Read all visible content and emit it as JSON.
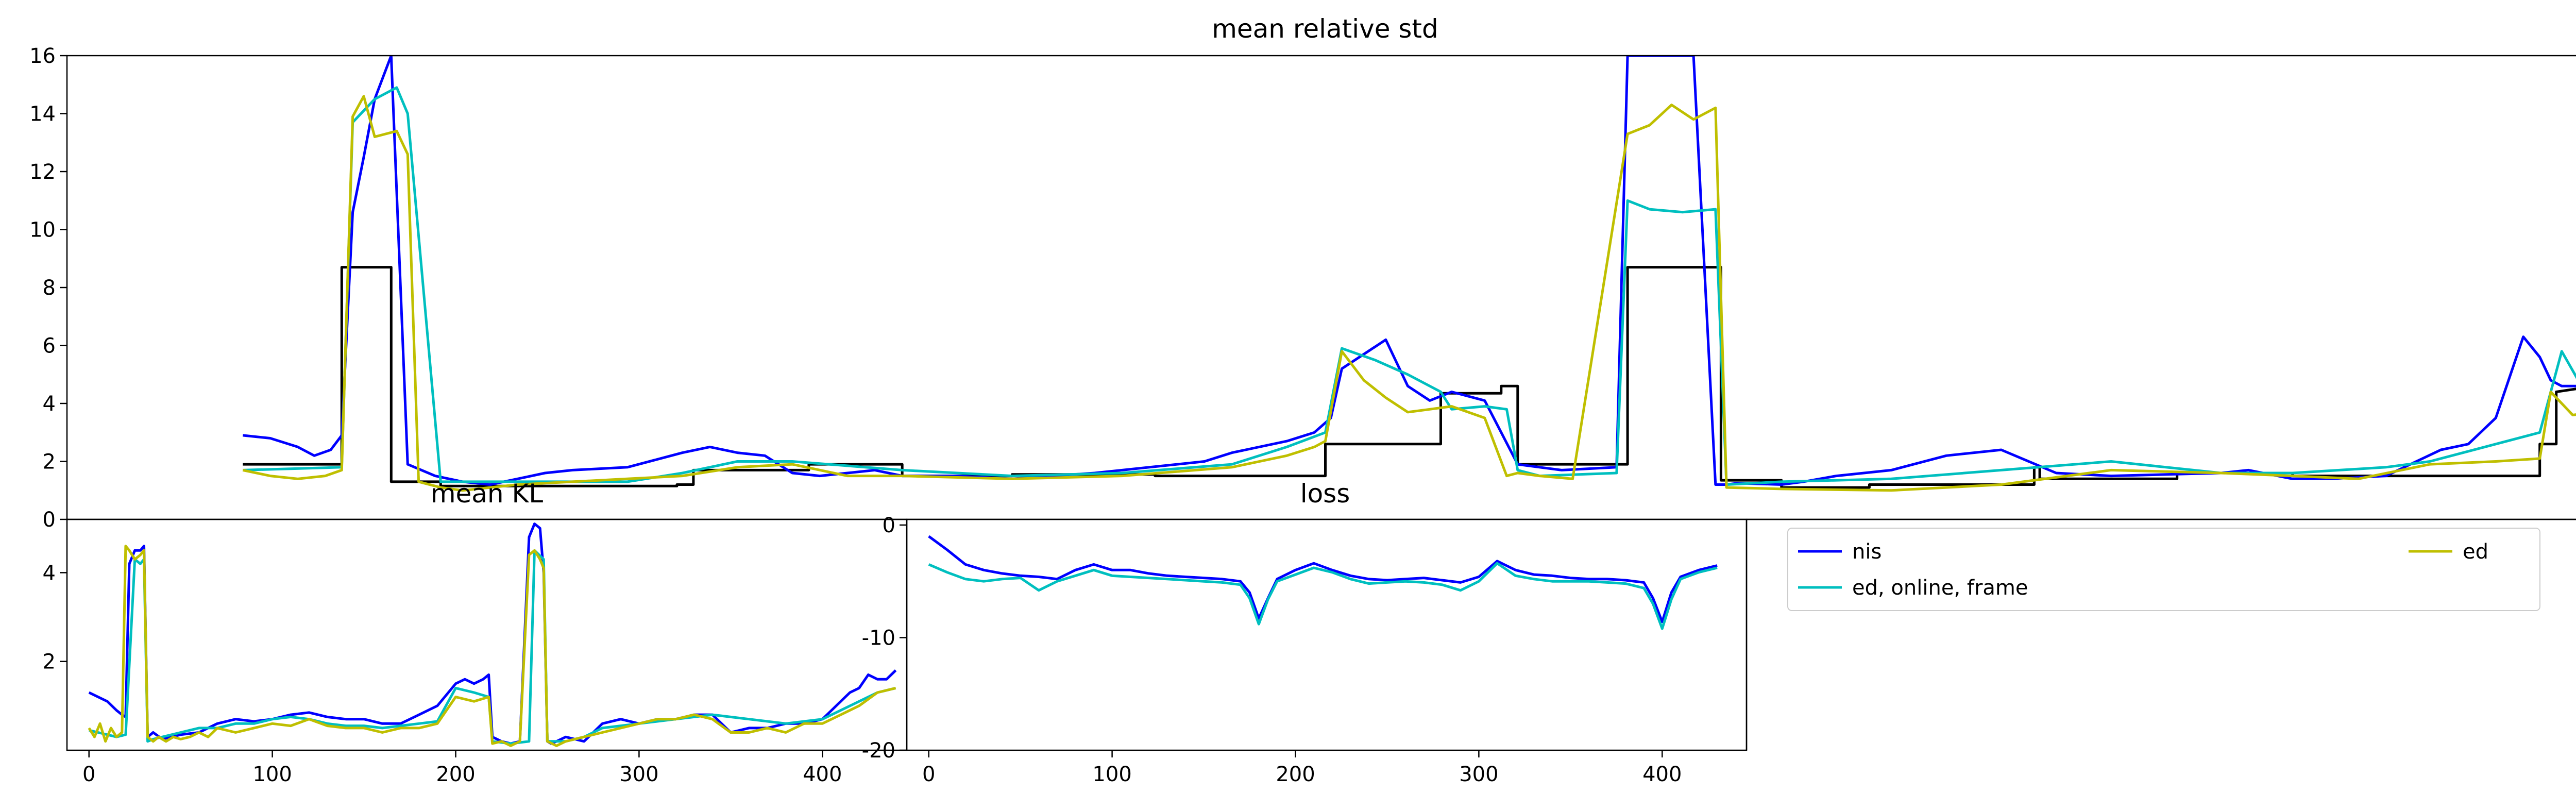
{
  "colors": {
    "nis": "#0000ff",
    "ed_online_frame": "#00bfbf",
    "ed": "#bfbf00",
    "ref": "#000000"
  },
  "legend": {
    "entries": [
      {
        "key": "nis",
        "label": "nis"
      },
      {
        "key": "ed_online_frame",
        "label": "ed, online, frame"
      },
      {
        "key": "ed",
        "label": "ed"
      }
    ]
  },
  "chart_data": [
    {
      "id": "top",
      "type": "line",
      "title": "mean relative std",
      "xlim": [
        -12,
        446
      ],
      "ylim": [
        0,
        16
      ],
      "yticks": [
        0,
        2,
        4,
        6,
        8,
        10,
        12,
        14,
        16
      ],
      "series": [
        {
          "key": "ref",
          "name": "",
          "x": [
            20,
            38,
            38,
            47,
            47,
            56,
            56,
            99,
            99,
            102,
            102,
            123,
            123,
            140,
            140,
            160,
            160,
            186,
            186,
            217,
            217,
            238,
            238,
            249,
            249,
            252,
            252,
            272,
            272,
            289,
            289,
            300,
            300,
            316,
            316,
            346,
            346,
            347,
            347,
            372,
            372,
            393,
            393,
            438,
            438,
            441,
            441,
            448
          ],
          "y": [
            1.9,
            1.9,
            8.7,
            8.7,
            1.3,
            1.3,
            1.15,
            1.15,
            1.2,
            1.2,
            1.7,
            1.7,
            1.9,
            1.9,
            1.5,
            1.5,
            1.55,
            1.55,
            1.5,
            1.5,
            2.6,
            2.6,
            4.35,
            4.35,
            4.6,
            4.6,
            1.9,
            1.9,
            8.7,
            8.7,
            1.35,
            1.35,
            1.1,
            1.1,
            1.2,
            1.2,
            1.8,
            1.8,
            1.4,
            1.4,
            1.6,
            1.6,
            1.5,
            1.5,
            2.6,
            2.6,
            4.4,
            4.6
          ]
        },
        {
          "key": "nis",
          "name": "nis",
          "x": [
            20,
            25,
            30,
            33,
            36,
            38,
            40,
            42,
            44,
            46,
            47,
            50,
            55,
            60,
            65,
            70,
            75,
            80,
            90,
            100,
            105,
            110,
            115,
            120,
            125,
            130,
            135,
            140,
            145,
            150,
            160,
            175,
            195,
            200,
            210,
            215,
            218,
            220,
            224,
            228,
            232,
            236,
            240,
            246,
            252,
            256,
            260,
            270,
            272,
            275,
            278,
            284,
            288,
            290,
            292,
            300,
            304,
            310,
            320,
            330,
            340,
            350,
            360,
            380,
            385,
            393,
            400,
            410,
            420,
            425,
            430,
            435,
            438,
            440,
            442,
            445,
            448
          ],
          "y": [
            2.9,
            2.8,
            2.5,
            2.2,
            2.4,
            2.9,
            10.6,
            12.5,
            14.5,
            15.5,
            16,
            1.9,
            1.5,
            1.3,
            1.2,
            1.4,
            1.6,
            1.7,
            1.8,
            2.3,
            2.5,
            2.3,
            2.2,
            1.6,
            1.5,
            1.6,
            1.7,
            1.5,
            1.5,
            1.5,
            1.4,
            1.6,
            2.0,
            2.3,
            2.7,
            3,
            3.5,
            5.2,
            5.7,
            6.2,
            4.6,
            4.1,
            4.4,
            4.1,
            1.9,
            1.8,
            1.7,
            1.8,
            16,
            16,
            16,
            16,
            1.2,
            1.2,
            1.25,
            1.2,
            1.3,
            1.5,
            1.7,
            2.2,
            2.4,
            1.6,
            1.5,
            1.6,
            1.7,
            1.4,
            1.4,
            1.5,
            2.4,
            2.6,
            3.5,
            6.3,
            5.6,
            4.8,
            4.6,
            4.6,
            4.7
          ]
        },
        {
          "key": "ed_online_frame",
          "name": "ed, online, frame",
          "x": [
            20,
            38,
            40,
            44,
            48,
            50,
            56,
            70,
            90,
            100,
            110,
            120,
            140,
            160,
            180,
            200,
            210,
            217,
            220,
            226,
            232,
            238,
            240,
            246,
            250,
            252,
            256,
            270,
            272,
            276,
            282,
            288,
            290,
            300,
            320,
            340,
            360,
            380,
            393,
            410,
            418,
            438,
            442,
            448
          ],
          "y": [
            1.7,
            1.8,
            13.7,
            14.5,
            14.9,
            14,
            1.3,
            1.3,
            1.3,
            1.6,
            2,
            2,
            1.7,
            1.5,
            1.6,
            1.9,
            2.5,
            3.0,
            5.9,
            5.5,
            5,
            4.4,
            3.8,
            3.9,
            3.8,
            1.7,
            1.5,
            1.6,
            11.0,
            10.7,
            10.6,
            10.7,
            1.2,
            1.3,
            1.4,
            1.7,
            2,
            1.6,
            1.6,
            1.8,
            2.0,
            3.0,
            5.8,
            3.8
          ]
        },
        {
          "key": "ed",
          "name": "ed",
          "x": [
            20,
            25,
            30,
            35,
            38,
            40,
            42,
            44,
            48,
            50,
            52,
            56,
            60,
            70,
            80,
            90,
            100,
            110,
            120,
            130,
            140,
            160,
            180,
            200,
            210,
            215,
            217,
            220,
            224,
            228,
            232,
            236,
            240,
            246,
            250,
            252,
            256,
            262,
            272,
            276,
            280,
            284,
            288,
            290,
            300,
            320,
            330,
            340,
            360,
            380,
            393,
            405,
            418,
            430,
            438,
            440,
            444,
            448
          ],
          "y": [
            1.7,
            1.5,
            1.4,
            1.5,
            1.7,
            13.9,
            14.6,
            13.2,
            13.4,
            12.6,
            1.3,
            1.1,
            1.0,
            1.2,
            1.3,
            1.4,
            1.5,
            1.8,
            1.9,
            1.5,
            1.5,
            1.4,
            1.5,
            1.8,
            2.2,
            2.5,
            2.7,
            5.8,
            4.8,
            4.2,
            3.7,
            3.8,
            3.9,
            3.5,
            1.5,
            1.6,
            1.5,
            1.4,
            13.3,
            13.6,
            14.3,
            13.8,
            14.2,
            1.1,
            1.05,
            1.0,
            1.1,
            1.2,
            1.7,
            1.6,
            1.5,
            1.4,
            1.9,
            2.0,
            2.1,
            4.4,
            3.6,
            3.7
          ]
        }
      ]
    },
    {
      "id": "bottom-left",
      "type": "line",
      "title": "mean KL",
      "xlim": [
        -12,
        446
      ],
      "ylim": [
        0.0,
        5.2
      ],
      "yticks": [
        2,
        4
      ],
      "xticks": [
        0,
        100,
        200,
        300,
        400
      ],
      "series": [
        {
          "key": "nis",
          "name": "nis",
          "x": [
            0,
            5,
            10,
            15,
            18,
            20,
            22,
            25,
            28,
            30,
            32,
            35,
            40,
            50,
            60,
            70,
            80,
            90,
            100,
            110,
            120,
            130,
            140,
            150,
            160,
            170,
            180,
            190,
            200,
            205,
            210,
            215,
            218,
            220,
            225,
            230,
            235,
            240,
            243,
            246,
            248,
            250,
            252,
            255,
            260,
            270,
            280,
            290,
            300,
            310,
            320,
            330,
            340,
            350,
            360,
            370,
            380,
            390,
            400,
            405,
            410,
            415,
            420,
            425,
            430,
            435,
            440
          ],
          "y": [
            1.3,
            1.2,
            1.1,
            0.9,
            0.8,
            0.75,
            4.2,
            4.5,
            4.5,
            4.6,
            0.3,
            0.4,
            0.25,
            0.35,
            0.4,
            0.6,
            0.7,
            0.65,
            0.7,
            0.8,
            0.85,
            0.75,
            0.7,
            0.7,
            0.6,
            0.6,
            0.8,
            1.0,
            1.5,
            1.6,
            1.5,
            1.6,
            1.7,
            0.3,
            0.2,
            0.15,
            0.2,
            4.8,
            5.1,
            5.0,
            4.0,
            0.2,
            0.15,
            0.2,
            0.3,
            0.2,
            0.6,
            0.7,
            0.6,
            0.7,
            0.7,
            0.8,
            0.8,
            0.4,
            0.5,
            0.5,
            0.6,
            0.6,
            0.7,
            0.9,
            1.1,
            1.3,
            1.4,
            1.7,
            1.6,
            1.6,
            1.8
          ]
        },
        {
          "key": "ed_online_frame",
          "name": "ed, online, frame",
          "x": [
            0,
            5,
            10,
            15,
            20,
            25,
            28,
            30,
            32,
            35,
            40,
            50,
            60,
            70,
            80,
            90,
            100,
            110,
            120,
            130,
            140,
            150,
            160,
            170,
            180,
            190,
            200,
            210,
            218,
            220,
            230,
            240,
            243,
            248,
            250,
            260,
            270,
            280,
            300,
            320,
            330,
            340,
            360,
            380,
            400,
            410,
            420,
            430,
            440
          ],
          "y": [
            0.45,
            0.4,
            0.35,
            0.3,
            0.35,
            4.3,
            4.2,
            4.3,
            0.2,
            0.25,
            0.3,
            0.4,
            0.5,
            0.5,
            0.6,
            0.6,
            0.7,
            0.75,
            0.7,
            0.6,
            0.55,
            0.55,
            0.5,
            0.55,
            0.6,
            0.65,
            1.4,
            1.3,
            1.2,
            0.2,
            0.15,
            0.2,
            4.5,
            4.3,
            0.2,
            0.2,
            0.3,
            0.5,
            0.6,
            0.7,
            0.75,
            0.8,
            0.7,
            0.6,
            0.7,
            0.9,
            1.1,
            1.3,
            1.4
          ]
        },
        {
          "key": "ed",
          "name": "ed",
          "x": [
            0,
            3,
            6,
            9,
            12,
            15,
            18,
            20,
            22,
            25,
            28,
            30,
            32,
            35,
            38,
            42,
            46,
            50,
            55,
            60,
            65,
            70,
            80,
            90,
            100,
            110,
            120,
            130,
            140,
            150,
            160,
            170,
            180,
            190,
            200,
            210,
            218,
            220,
            225,
            230,
            235,
            240,
            243,
            246,
            248,
            250,
            255,
            260,
            270,
            280,
            290,
            300,
            310,
            320,
            330,
            340,
            350,
            360,
            370,
            380,
            390,
            400,
            410,
            420,
            430,
            440
          ],
          "y": [
            0.5,
            0.3,
            0.6,
            0.2,
            0.5,
            0.3,
            0.4,
            4.6,
            4.5,
            4.3,
            4.4,
            4.5,
            0.3,
            0.2,
            0.3,
            0.2,
            0.3,
            0.25,
            0.3,
            0.4,
            0.3,
            0.5,
            0.4,
            0.5,
            0.6,
            0.55,
            0.7,
            0.55,
            0.5,
            0.5,
            0.4,
            0.5,
            0.5,
            0.6,
            1.2,
            1.1,
            1.2,
            0.15,
            0.2,
            0.1,
            0.2,
            4.4,
            4.5,
            4.3,
            4.1,
            0.2,
            0.1,
            0.2,
            0.3,
            0.4,
            0.5,
            0.6,
            0.7,
            0.7,
            0.8,
            0.7,
            0.4,
            0.4,
            0.5,
            0.4,
            0.6,
            0.6,
            0.8,
            1.0,
            1.3,
            1.4
          ]
        }
      ]
    },
    {
      "id": "bottom-mid",
      "type": "line",
      "title": "loss",
      "xlim": [
        -12,
        446
      ],
      "ylim": [
        -20,
        0.5
      ],
      "yticks": [
        0,
        -10,
        -20
      ],
      "xticks": [
        0,
        100,
        200,
        300,
        400
      ],
      "series": [
        {
          "key": "nis",
          "name": "nis",
          "x": [
            0,
            10,
            20,
            30,
            40,
            50,
            60,
            70,
            80,
            90,
            100,
            110,
            120,
            130,
            140,
            150,
            160,
            170,
            175,
            180,
            185,
            190,
            200,
            210,
            220,
            230,
            240,
            250,
            260,
            270,
            280,
            290,
            300,
            310,
            320,
            330,
            340,
            350,
            360,
            370,
            380,
            390,
            395,
            400,
            405,
            410,
            420,
            430
          ],
          "y": [
            -1,
            -2.2,
            -3.5,
            -4.0,
            -4.3,
            -4.5,
            -4.6,
            -4.8,
            -4.0,
            -3.5,
            -4.0,
            -4.0,
            -4.3,
            -4.5,
            -4.6,
            -4.7,
            -4.8,
            -5.0,
            -6.0,
            -8.3,
            -6.5,
            -4.8,
            -4.0,
            -3.4,
            -4.0,
            -4.5,
            -4.8,
            -4.9,
            -4.8,
            -4.7,
            -4.9,
            -5.1,
            -4.6,
            -3.2,
            -4.0,
            -4.4,
            -4.5,
            -4.7,
            -4.8,
            -4.8,
            -4.9,
            -5.1,
            -6.5,
            -8.6,
            -6.0,
            -4.6,
            -4.0,
            -3.6
          ]
        },
        {
          "key": "ed_online_frame",
          "name": "ed, online, frame",
          "x": [
            0,
            10,
            20,
            30,
            40,
            50,
            60,
            70,
            80,
            90,
            100,
            110,
            120,
            130,
            140,
            150,
            160,
            170,
            175,
            180,
            185,
            190,
            200,
            210,
            220,
            230,
            240,
            250,
            260,
            270,
            280,
            290,
            300,
            310,
            320,
            330,
            340,
            350,
            360,
            370,
            380,
            390,
            395,
            400,
            405,
            410,
            420,
            430
          ],
          "y": [
            -3.5,
            -4.2,
            -4.8,
            -5.0,
            -4.8,
            -4.7,
            -5.8,
            -5.0,
            -4.5,
            -4.0,
            -4.5,
            -4.6,
            -4.7,
            -4.8,
            -4.9,
            -5.0,
            -5.1,
            -5.3,
            -6.5,
            -8.8,
            -6.6,
            -5.0,
            -4.4,
            -3.8,
            -4.2,
            -4.8,
            -5.2,
            -5.1,
            -5.0,
            -5.1,
            -5.3,
            -5.8,
            -5.0,
            -3.4,
            -4.5,
            -4.8,
            -5.0,
            -5.0,
            -5.0,
            -5.1,
            -5.2,
            -5.6,
            -7.0,
            -9.2,
            -6.6,
            -4.8,
            -4.2,
            -3.8
          ]
        }
      ]
    }
  ]
}
